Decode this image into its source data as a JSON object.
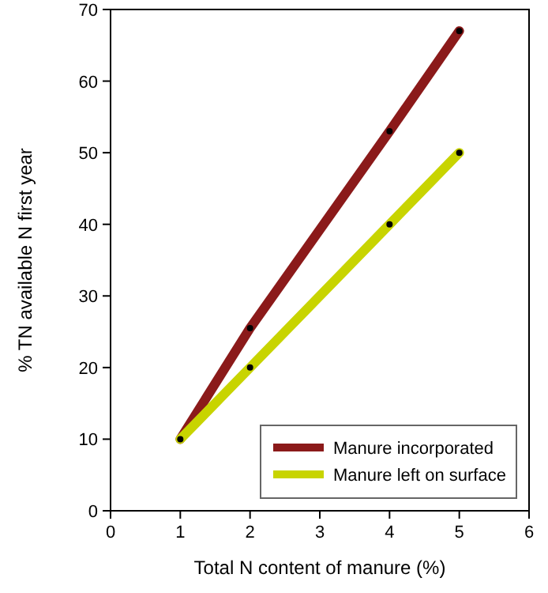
{
  "chart_data": {
    "type": "line",
    "xlabel": "Total N content of manure (%)",
    "ylabel": "% TN available N first year",
    "xlim": [
      0,
      6
    ],
    "xticks": [
      0,
      1,
      2,
      3,
      4,
      5,
      6
    ],
    "ylim": [
      0,
      70
    ],
    "yticks": [
      0,
      10,
      20,
      30,
      40,
      50,
      60,
      70
    ],
    "grid": false,
    "legend": "bottom right",
    "marker": "circle",
    "line_style": "solid",
    "series": [
      {
        "name": "Manure incorporated",
        "color": "#8b1a1a",
        "x": [
          1,
          2,
          4,
          5
        ],
        "values": [
          10,
          25.5,
          53,
          67
        ]
      },
      {
        "name": "Manure left on surface",
        "color": "#c8d400",
        "x": [
          1,
          2,
          4,
          5
        ],
        "values": [
          10,
          20,
          40,
          50
        ]
      }
    ]
  }
}
